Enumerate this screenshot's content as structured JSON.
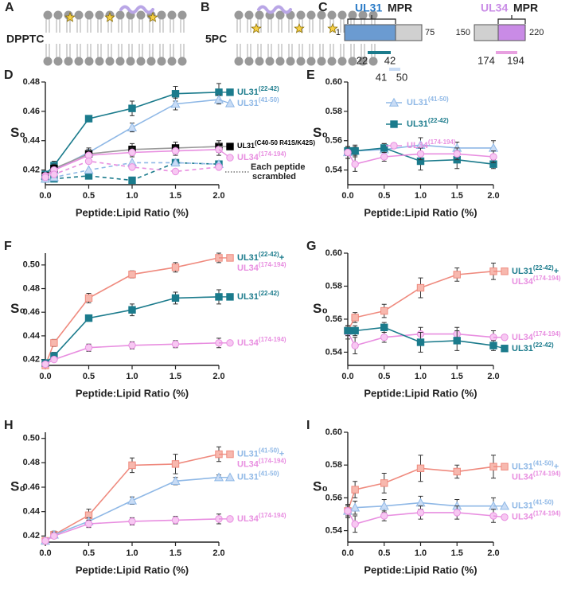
{
  "diagrams": [
    {
      "panel": "A",
      "label": "DPPTC"
    },
    {
      "panel": "B",
      "label": "5PC"
    },
    {
      "panel": "C",
      "proteins": [
        {
          "name": "UL31",
          "mpr": "MPR",
          "start": "1",
          "end": "75",
          "fragments": [
            [
              "22",
              "42"
            ],
            [
              "41",
              "50"
            ]
          ]
        },
        {
          "name": "UL34",
          "mpr": "MPR",
          "start": "150",
          "end": "220",
          "fragments": [
            [
              "174",
              "194"
            ]
          ]
        }
      ]
    }
  ],
  "chart_data": [
    {
      "type": "line",
      "panel": "D",
      "ylabel": "S₀",
      "xlabel": "Peptide:Lipid Ratio (%)",
      "legend": "end",
      "annotation": [
        "Each peptide",
        "scrambled"
      ],
      "x": [
        0,
        0.1,
        0.5,
        1.0,
        1.5,
        2.0
      ],
      "xlim": [
        0,
        2.0
      ],
      "xticks": [
        {
          "value": 0,
          "label": "0.0"
        },
        {
          "value": 0.5,
          "label": "0.5"
        },
        {
          "value": 1.0,
          "label": "1.0"
        },
        {
          "value": 1.5,
          "label": "1.5"
        },
        {
          "value": 2.0,
          "label": "2.0"
        }
      ],
      "ylim": [
        0.41,
        0.48
      ],
      "yticks": [
        0.42,
        0.44,
        0.46,
        0.48
      ],
      "series": [
        {
          "name": [
            "UL31(22-42)"
          ],
          "name_colors": [
            "#1b7b8c"
          ],
          "color": "#1b7b8c",
          "fill": "#1b7b8c",
          "marker": "square",
          "values": [
            0.417,
            0.423,
            0.455,
            0.462,
            0.472,
            0.473
          ],
          "errors": [
            0.002,
            0.003,
            0.002,
            0.005,
            0.005,
            0.006
          ]
        },
        {
          "name": [
            "UL31(41-50)"
          ],
          "name_colors": [
            "#8fb8e6"
          ],
          "color": "#8fb8e6",
          "fill": "#c9dcf5",
          "marker": "triangle",
          "values": [
            0.416,
            0.42,
            0.432,
            0.449,
            0.465,
            0.468
          ],
          "errors": [
            0.002,
            0.002,
            0.002,
            0.003,
            0.004,
            0.003
          ]
        },
        {
          "name": [
            "UL31(C40-50 R41S/K42S)"
          ],
          "name_colors": [
            "#000000"
          ],
          "color": "#000000",
          "line_color": "#999999",
          "fill": "#000000",
          "marker": "square",
          "values": [
            0.416,
            0.421,
            0.431,
            0.434,
            0.435,
            0.436
          ],
          "errors": [
            0.002,
            0.003,
            0.004,
            0.004,
            0.004,
            0.004
          ]
        },
        {
          "name": [
            "UL34(174-194)"
          ],
          "name_colors": [
            "#e88ee0"
          ],
          "color": "#e88ee0",
          "fill": "#f7c8f2",
          "marker": "circle",
          "values": [
            0.416,
            0.42,
            0.43,
            0.432,
            0.433,
            0.434
          ],
          "errors": [
            0.002,
            0.002,
            0.003,
            0.003,
            0.003,
            0.004
          ]
        },
        {
          "color": "#1b7b8c",
          "fill": "#1b7b8c",
          "marker": "square",
          "dashed": true,
          "values": [
            0.414,
            0.414,
            0.416,
            0.413,
            0.425,
            0.424
          ]
        },
        {
          "color": "#8fb8e6",
          "fill": "#c9dcf5",
          "marker": "triangle",
          "dashed": true,
          "values": [
            0.414,
            0.415,
            0.42,
            0.425,
            0.425,
            0.424
          ]
        },
        {
          "color": "#e88ee0",
          "fill": "#f7c8f2",
          "marker": "circle",
          "dashed": true,
          "values": [
            0.415,
            0.417,
            0.426,
            0.422,
            0.419,
            0.422
          ]
        }
      ]
    },
    {
      "type": "line",
      "panel": "E",
      "ylabel": "S₀",
      "xlabel": "Peptide:Lipid Ratio (%)",
      "legend": "upper-right",
      "x": [
        0,
        0.1,
        0.5,
        1.0,
        1.5,
        2.0
      ],
      "xlim": [
        0,
        2.0
      ],
      "xticks": [
        {
          "value": 0,
          "label": "0.0"
        },
        {
          "value": 0.5,
          "label": "0.5"
        },
        {
          "value": 1.0,
          "label": "1.0"
        },
        {
          "value": 1.5,
          "label": "1.5"
        },
        {
          "value": 2.0,
          "label": "2.0"
        }
      ],
      "ylim": [
        0.53,
        0.6
      ],
      "yticks": [
        0.54,
        0.56,
        0.58,
        {
          "value": 0.6,
          "label": "0.60"
        }
      ],
      "series": [
        {
          "name": [
            "UL31(41-50)"
          ],
          "name_colors": [
            "#8fb8e6"
          ],
          "color": "#8fb8e6",
          "fill": "#c9dcf5",
          "marker": "triangle",
          "values": [
            0.552,
            0.553,
            0.554,
            0.557,
            0.555,
            0.555
          ],
          "errors": [
            0.004,
            0.004,
            0.004,
            0.005,
            0.004,
            0.005
          ]
        },
        {
          "name": [
            "UL31(22-42)"
          ],
          "name_colors": [
            "#1b7b8c"
          ],
          "color": "#1b7b8c",
          "fill": "#1b7b8c",
          "marker": "square",
          "values": [
            0.553,
            0.553,
            0.555,
            0.546,
            0.547,
            0.544
          ],
          "errors": [
            0.003,
            0.003,
            0.003,
            0.006,
            0.006,
            0.003
          ]
        },
        {
          "name": [
            "UL34(174-194)"
          ],
          "name_colors": [
            "#e88ee0"
          ],
          "color": "#e88ee0",
          "fill": "#f7c8f2",
          "marker": "circle",
          "values": [
            0.552,
            0.544,
            0.549,
            0.551,
            0.551,
            0.549
          ],
          "errors": [
            0.004,
            0.005,
            0.003,
            0.004,
            0.004,
            0.004
          ]
        }
      ]
    },
    {
      "type": "line",
      "panel": "F",
      "ylabel": "S₀",
      "xlabel": "Peptide:Lipid Ratio (%)",
      "legend": "end",
      "x": [
        0,
        0.1,
        0.5,
        1.0,
        1.5,
        2.0
      ],
      "xlim": [
        0,
        2.0
      ],
      "xticks": [
        {
          "value": 0,
          "label": "0.0"
        },
        {
          "value": 0.5,
          "label": "0.5"
        },
        {
          "value": 1.0,
          "label": "1.0"
        },
        {
          "value": 1.5,
          "label": "1.5"
        },
        {
          "value": 2.0,
          "label": "2.0"
        }
      ],
      "ylim": [
        0.415,
        0.51
      ],
      "yticks": [
        0.42,
        0.44,
        0.46,
        0.48,
        {
          "value": 0.5,
          "label": "0.50"
        }
      ],
      "series": [
        {
          "name": [
            "UL31(22-42)+",
            "UL34(174-194)"
          ],
          "name_colors": [
            "#1b7b8c",
            "#e88ee0"
          ],
          "color": "#ef8a7e",
          "fill": "#f7b8ae",
          "marker": "square",
          "values": [
            0.415,
            0.434,
            0.472,
            0.492,
            0.498,
            0.506
          ],
          "errors": [
            0.002,
            0.003,
            0.004,
            0.003,
            0.004,
            0.004
          ]
        },
        {
          "name": [
            "UL31(22-42)"
          ],
          "name_colors": [
            "#1b7b8c"
          ],
          "color": "#1b7b8c",
          "fill": "#1b7b8c",
          "marker": "square",
          "values": [
            0.417,
            0.423,
            0.455,
            0.462,
            0.472,
            0.473
          ],
          "errors": [
            0.002,
            0.003,
            0.002,
            0.005,
            0.005,
            0.006
          ]
        },
        {
          "name": [
            "UL34(174-194)"
          ],
          "name_colors": [
            "#e88ee0"
          ],
          "color": "#e88ee0",
          "fill": "#f7c8f2",
          "marker": "circle",
          "values": [
            0.416,
            0.42,
            0.43,
            0.432,
            0.433,
            0.434
          ],
          "errors": [
            0.002,
            0.002,
            0.003,
            0.003,
            0.003,
            0.004
          ]
        }
      ]
    },
    {
      "type": "line",
      "panel": "G",
      "ylabel": "S₀",
      "xlabel": "Peptide:Lipid Ratio (%)",
      "legend": "end",
      "x": [
        0,
        0.1,
        0.5,
        1.0,
        1.5,
        2.0
      ],
      "xlim": [
        0,
        2.0
      ],
      "xticks": [
        {
          "value": 0,
          "label": "0.0"
        },
        {
          "value": 0.5,
          "label": "0.5"
        },
        {
          "value": 1.0,
          "label": "1.0"
        },
        {
          "value": 1.5,
          "label": "1.5"
        },
        {
          "value": 2.0,
          "label": "2.0"
        }
      ],
      "ylim": [
        0.532,
        0.6
      ],
      "yticks": [
        0.54,
        0.56,
        0.58,
        {
          "value": 0.6,
          "label": "0.60"
        }
      ],
      "series": [
        {
          "name": [
            "UL31(22-42)+",
            "UL34(174-194)"
          ],
          "name_colors": [
            "#1b7b8c",
            "#e88ee0"
          ],
          "color": "#ef8a7e",
          "fill": "#f7b8ae",
          "marker": "square",
          "values": [
            0.553,
            0.561,
            0.565,
            0.579,
            0.587,
            0.589
          ],
          "errors": [
            0.003,
            0.003,
            0.004,
            0.006,
            0.004,
            0.005
          ]
        },
        {
          "name": [
            "UL34(174-194)"
          ],
          "name_colors": [
            "#e88ee0"
          ],
          "color": "#e88ee0",
          "fill": "#f7c8f2",
          "marker": "circle",
          "values": [
            0.552,
            0.544,
            0.549,
            0.551,
            0.551,
            0.549
          ],
          "errors": [
            0.004,
            0.005,
            0.003,
            0.004,
            0.004,
            0.004
          ]
        },
        {
          "name": [
            "UL31(22-42)"
          ],
          "name_colors": [
            "#1b7b8c"
          ],
          "color": "#1b7b8c",
          "fill": "#1b7b8c",
          "marker": "square",
          "values": [
            0.553,
            0.553,
            0.555,
            0.546,
            0.547,
            0.544
          ],
          "errors": [
            0.003,
            0.003,
            0.003,
            0.006,
            0.006,
            0.003
          ]
        }
      ]
    },
    {
      "type": "line",
      "panel": "H",
      "ylabel": "S₀",
      "xlabel": "Peptide:Lipid Ratio (%)",
      "legend": "end",
      "x": [
        0,
        0.1,
        0.5,
        1.0,
        1.5,
        2.0
      ],
      "xlim": [
        0,
        2.0
      ],
      "xticks": [
        {
          "value": 0,
          "label": "0.0"
        },
        {
          "value": 0.5,
          "label": "0.5"
        },
        {
          "value": 1.0,
          "label": "1.0"
        },
        {
          "value": 1.5,
          "label": "1.5"
        },
        {
          "value": 2.0,
          "label": "2.0"
        }
      ],
      "ylim": [
        0.415,
        0.505
      ],
      "yticks": [
        0.42,
        0.44,
        0.46,
        0.48,
        {
          "value": 0.5,
          "label": "0.50"
        }
      ],
      "series": [
        {
          "name": [
            "UL31(41-50)+",
            "UL34(174-194)"
          ],
          "name_colors": [
            "#8fb8e6",
            "#e88ee0"
          ],
          "color": "#ef8a7e",
          "fill": "#f7b8ae",
          "marker": "square",
          "values": [
            0.416,
            0.421,
            0.437,
            0.478,
            0.479,
            0.487
          ],
          "errors": [
            0.002,
            0.003,
            0.005,
            0.006,
            0.008,
            0.006
          ]
        },
        {
          "name": [
            "UL31(41-50)"
          ],
          "name_colors": [
            "#8fb8e6"
          ],
          "color": "#8fb8e6",
          "fill": "#c9dcf5",
          "marker": "triangle",
          "values": [
            0.416,
            0.421,
            0.432,
            0.449,
            0.465,
            0.468
          ],
          "errors": [
            0.002,
            0.002,
            0.003,
            0.003,
            0.003,
            0.002
          ]
        },
        {
          "name": [
            "UL34(174-194)"
          ],
          "name_colors": [
            "#e88ee0"
          ],
          "color": "#e88ee0",
          "fill": "#f7c8f2",
          "marker": "circle",
          "values": [
            0.416,
            0.42,
            0.43,
            0.432,
            0.433,
            0.434
          ],
          "errors": [
            0.002,
            0.002,
            0.003,
            0.003,
            0.003,
            0.004
          ]
        }
      ]
    },
    {
      "type": "line",
      "panel": "I",
      "ylabel": "S₀",
      "xlabel": "Peptide:Lipid Ratio (%)",
      "legend": "end",
      "x": [
        0,
        0.1,
        0.5,
        1.0,
        1.5,
        2.0
      ],
      "xlim": [
        0,
        2.0
      ],
      "xticks": [
        {
          "value": 0,
          "label": "0.0"
        },
        {
          "value": 0.5,
          "label": "0.5"
        },
        {
          "value": 1.0,
          "label": "1.0"
        },
        {
          "value": 1.5,
          "label": "1.5"
        },
        {
          "value": 2.0,
          "label": "2.0"
        }
      ],
      "ylim": [
        0.533,
        0.6
      ],
      "yticks": [
        0.54,
        0.56,
        0.58,
        {
          "value": 0.6,
          "label": "0.60"
        }
      ],
      "series": [
        {
          "name": [
            "UL31(41-50)+",
            "UL34(174-194)"
          ],
          "name_colors": [
            "#8fb8e6",
            "#e88ee0"
          ],
          "color": "#ef8a7e",
          "fill": "#f7b8ae",
          "marker": "square",
          "values": [
            0.552,
            0.565,
            0.569,
            0.578,
            0.576,
            0.579
          ],
          "errors": [
            0.003,
            0.005,
            0.006,
            0.008,
            0.004,
            0.007
          ]
        },
        {
          "name": [
            "UL31(41-50)"
          ],
          "name_colors": [
            "#8fb8e6"
          ],
          "color": "#8fb8e6",
          "fill": "#c9dcf5",
          "marker": "triangle",
          "values": [
            0.552,
            0.554,
            0.555,
            0.557,
            0.555,
            0.555
          ],
          "errors": [
            0.004,
            0.004,
            0.004,
            0.004,
            0.004,
            0.005
          ]
        },
        {
          "name": [
            "UL34(174-194)"
          ],
          "name_colors": [
            "#e88ee0"
          ],
          "color": "#e88ee0",
          "fill": "#f7c8f2",
          "marker": "circle",
          "values": [
            0.552,
            0.544,
            0.549,
            0.551,
            0.551,
            0.549
          ],
          "errors": [
            0.004,
            0.005,
            0.003,
            0.004,
            0.004,
            0.004
          ]
        }
      ]
    }
  ]
}
